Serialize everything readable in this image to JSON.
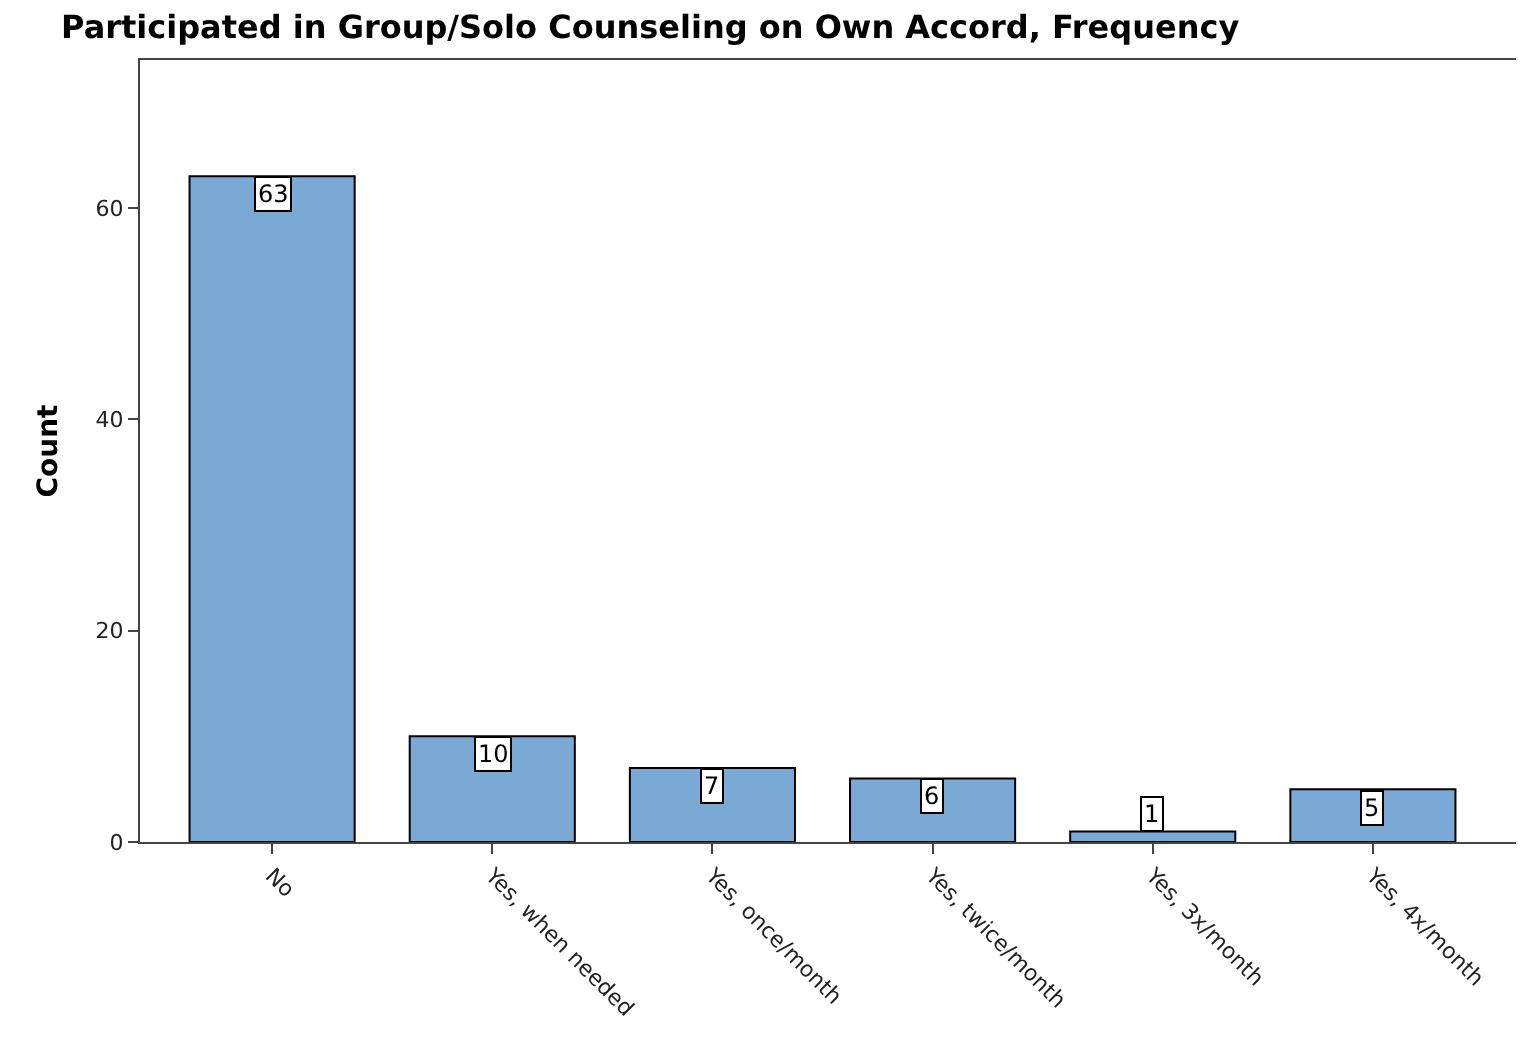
{
  "chart_data": {
    "type": "bar",
    "title": "Participated in Group/Solo Counseling on Own Accord, Frequency",
    "ylabel": "Count",
    "categories": [
      "No",
      "Yes, when needed",
      "Yes, once/month",
      "Yes, twice/month",
      "Yes, 3x/month",
      "Yes, 4x/month"
    ],
    "values": [
      63,
      10,
      7,
      6,
      1,
      5
    ],
    "color": "#7aa9d6",
    "ylim": [
      0,
      74
    ],
    "yticks": [
      0,
      20,
      40,
      60
    ],
    "data_labels": true
  }
}
